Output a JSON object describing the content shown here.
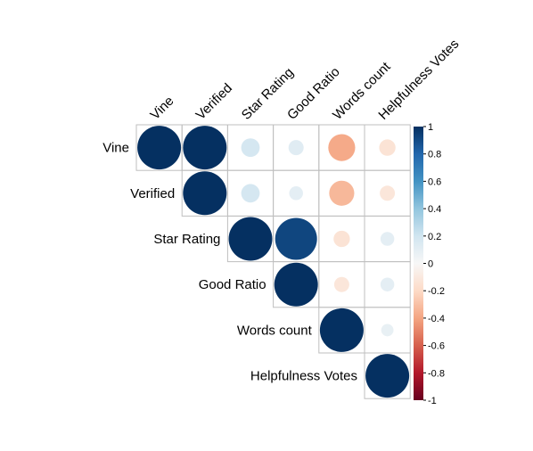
{
  "chart_data": {
    "type": "heatmap",
    "variables": [
      "Vine",
      "Verified",
      "Star Rating",
      "Good Ratio",
      "Words count",
      "Helpfulness Votes"
    ],
    "matrix": [
      [
        1.0,
        1.0,
        0.18,
        0.12,
        -0.38,
        -0.14
      ],
      [
        1.0,
        1.0,
        0.18,
        0.1,
        -0.33,
        -0.12
      ],
      [
        0.18,
        0.18,
        1.0,
        0.92,
        -0.14,
        0.1
      ],
      [
        0.12,
        0.1,
        0.92,
        1.0,
        -0.12,
        0.1
      ],
      [
        -0.38,
        -0.33,
        -0.14,
        -0.12,
        1.0,
        0.08
      ],
      [
        -0.14,
        -0.12,
        0.1,
        0.1,
        0.08,
        1.0
      ]
    ],
    "display": "upper-triangle",
    "glyph": "circle",
    "colorbar": {
      "range": [
        -1,
        1
      ],
      "ticks": [
        "1",
        "0.8",
        "0.6",
        "0.4",
        "0.2",
        "0",
        "-0.2",
        "-0.4",
        "-0.6",
        "-0.8",
        "-1"
      ],
      "colors": {
        "-1": "#67001f",
        "-0.8": "#b2182b",
        "-0.6": "#d6604d",
        "-0.4": "#f4a582",
        "-0.2": "#fddbc7",
        "0": "#f7f7f7",
        "0.2": "#d1e5f0",
        "0.4": "#92c5de",
        "0.6": "#4393c3",
        "0.8": "#2166ac",
        "1": "#053061"
      }
    }
  }
}
